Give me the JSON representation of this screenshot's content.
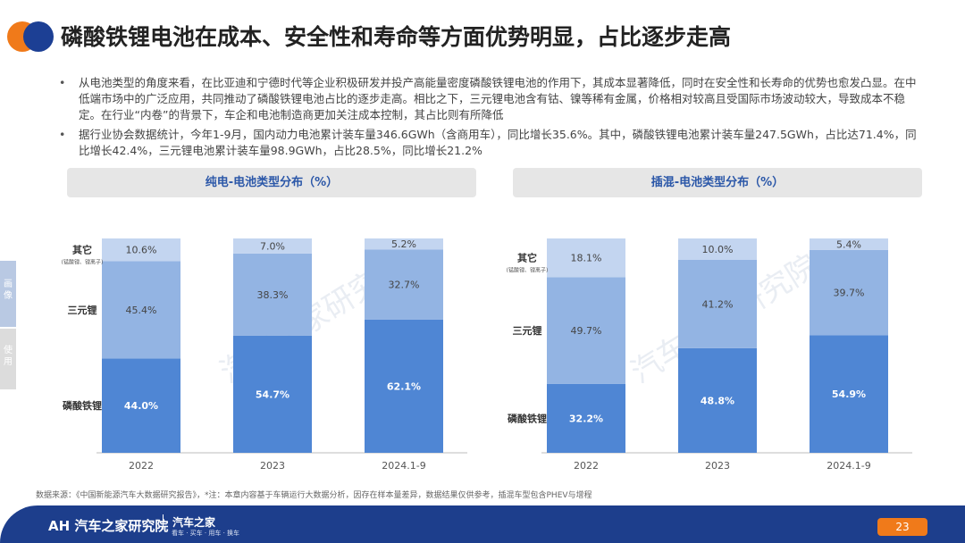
{
  "header": {
    "title": "磷酸铁锂电池在成本、安全性和寿命等方面优势明显，占比逐步走高"
  },
  "bullets": [
    "从电池类型的角度来看，在比亚迪和宁德时代等企业积极研发并投产高能量密度磷酸铁锂电池的作用下，其成本显著降低，同时在安全性和长寿命的优势也愈发凸显。在中低端市场中的广泛应用，共同推动了磷酸铁锂电池占比的逐步走高。相比之下，三元锂电池含有钴、镍等稀有金属，价格相对较高且受国际市场波动较大，导致成本不稳定。在行业“内卷”的背景下，车企和电池制造商更加关注成本控制，其占比则有所降低",
    "据行业协会数据统计，今年1-9月，国内动力电池累计装车量346.6GWh（含商用车），同比增长35.6%。其中，磷酸铁锂电池累计装车量247.5GWh，占比达71.4%，同比增长42.4%，三元锂电池累计装车量98.9GWh，占比28.5%，同比增长21.2%"
  ],
  "side_tags": [
    "画像",
    "使用"
  ],
  "chart_data": [
    {
      "type": "bar",
      "stacked": true,
      "title": "纯电-电池类型分布（%）",
      "categories": [
        "2022",
        "2023",
        "2024.1-9"
      ],
      "series": [
        {
          "name": "磷酸铁锂",
          "values": [
            44.0,
            54.7,
            62.1
          ],
          "color": "#4f86d4",
          "label_color": "#ffffff"
        },
        {
          "name": "三元锂",
          "values": [
            45.4,
            38.3,
            32.7
          ],
          "color": "#93b4e3",
          "label_color": "#444444"
        },
        {
          "name": "其它",
          "note": "(锰酸锂、锂离子)",
          "values": [
            10.6,
            7.0,
            5.2
          ],
          "color": "#c3d5f0",
          "label_color": "#444444"
        }
      ],
      "value_labels": [
        [
          "44.0%",
          "54.7%",
          "62.1%"
        ],
        [
          "45.4%",
          "38.3%",
          "32.7%"
        ],
        [
          "10.6%",
          "7.0%",
          "5.2%"
        ]
      ],
      "ylim": [
        0,
        100
      ]
    },
    {
      "type": "bar",
      "stacked": true,
      "title": "插混-电池类型分布（%）",
      "categories": [
        "2022",
        "2023",
        "2024.1-9"
      ],
      "series": [
        {
          "name": "磷酸铁锂",
          "values": [
            32.2,
            48.8,
            54.9
          ],
          "color": "#4f86d4",
          "label_color": "#ffffff"
        },
        {
          "name": "三元锂",
          "values": [
            49.7,
            41.2,
            39.7
          ],
          "color": "#93b4e3",
          "label_color": "#444444"
        },
        {
          "name": "其它",
          "note": "(锰酸锂、锂离子)",
          "values": [
            18.1,
            10.0,
            5.4
          ],
          "color": "#c3d5f0",
          "label_color": "#444444"
        }
      ],
      "value_labels": [
        [
          "32.2%",
          "48.8%",
          "54.9%"
        ],
        [
          "49.7%",
          "41.2%",
          "39.7%"
        ],
        [
          "18.1%",
          "10.0%",
          "5.4%"
        ]
      ],
      "ylim": [
        0,
        100
      ]
    }
  ],
  "watermark": "汽车之家研究院",
  "source": "数据来源：《中国新能源汽车大数据研究报告》，*注：本章内容基于车辆运行大数据分析，因存在样本量差异，数据结果仅供参考，插混车型包含PHEV与增程",
  "footer": {
    "logo_text": "AH 汽车之家研究院",
    "brand": "汽车之家",
    "brand_sub": "看车 · 买车 · 用车 · 换车",
    "page": "23"
  }
}
